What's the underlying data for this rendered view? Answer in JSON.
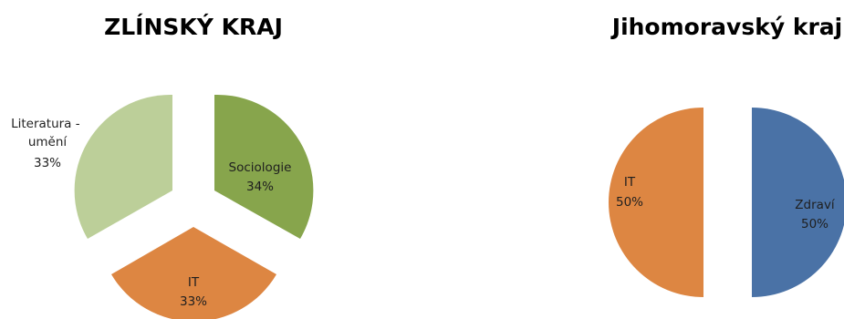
{
  "chart_data": [
    {
      "type": "pie",
      "exploded": true,
      "title": "ZLÍNSKÝ KRAJ",
      "slices": [
        {
          "label": "Sociologie",
          "percent_label": "34%",
          "value": 34,
          "color": "#87a54c"
        },
        {
          "label": "IT",
          "percent_label": "33%",
          "value": 33,
          "color": "#dd8642"
        },
        {
          "label": "Literatura -\numění",
          "percent_label": "33%",
          "value": 33,
          "color": "#bccf99"
        }
      ]
    },
    {
      "type": "pie",
      "exploded": true,
      "title": "Jihomoravský kraj",
      "slices": [
        {
          "label": "Zdraví",
          "percent_label": "50%",
          "value": 50,
          "color": "#4a72a6"
        },
        {
          "label": "IT",
          "percent_label": "50%",
          "value": 50,
          "color": "#dd8642"
        }
      ]
    }
  ]
}
